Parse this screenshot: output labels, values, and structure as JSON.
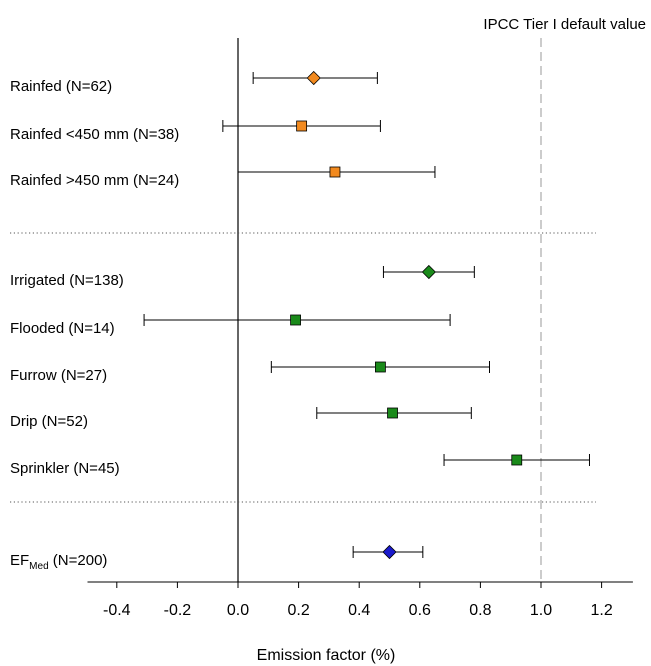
{
  "chart_data": {
    "type": "forest",
    "xlabel": "Emission factor (%)",
    "xlim": [
      -0.5,
      1.3
    ],
    "xticks": [
      "-0.4",
      "-0.2",
      "0.0",
      "0.2",
      "0.4",
      "0.6",
      "0.8",
      "1.0",
      "1.2"
    ],
    "reference_line": {
      "value": 1.0,
      "label": "IPCC Tier I default value",
      "style": "dashed",
      "color": "#b0b0b0"
    },
    "zero_line": {
      "value": 0.0,
      "style": "solid"
    },
    "section_separators": "dotted",
    "rows": [
      {
        "label": "Rainfed (N=62)",
        "estimate": 0.25,
        "lower": 0.05,
        "upper": 0.46,
        "marker": "diamond",
        "color": "#f28a1f",
        "group": "rainfed"
      },
      {
        "label": "Rainfed <450 mm (N=38)",
        "estimate": 0.21,
        "lower": -0.05,
        "upper": 0.47,
        "marker": "square",
        "color": "#f28a1f",
        "group": "rainfed"
      },
      {
        "label": "Rainfed >450 mm (N=24)",
        "estimate": 0.32,
        "lower": 0.0,
        "upper": 0.65,
        "marker": "square",
        "color": "#f28a1f",
        "group": "rainfed"
      },
      {
        "label": "Irrigated (N=138)",
        "estimate": 0.63,
        "lower": 0.48,
        "upper": 0.78,
        "marker": "diamond",
        "color": "#1a8a1a",
        "group": "irrigated"
      },
      {
        "label": "Flooded (N=14)",
        "estimate": 0.19,
        "lower": -0.31,
        "upper": 0.7,
        "marker": "square",
        "color": "#1a8a1a",
        "group": "irrigated"
      },
      {
        "label": "Furrow (N=27)",
        "estimate": 0.47,
        "lower": 0.11,
        "upper": 0.83,
        "marker": "square",
        "color": "#1a8a1a",
        "group": "irrigated"
      },
      {
        "label": "Drip (N=52)",
        "estimate": 0.51,
        "lower": 0.26,
        "upper": 0.77,
        "marker": "square",
        "color": "#1a8a1a",
        "group": "irrigated"
      },
      {
        "label": "Sprinkler (N=45)",
        "estimate": 0.92,
        "lower": 0.68,
        "upper": 1.16,
        "marker": "square",
        "color": "#1a8a1a",
        "group": "irrigated"
      },
      {
        "label_main": "EF",
        "label_sub": "Med",
        "label_rest": " (N=200)",
        "estimate": 0.5,
        "lower": 0.38,
        "upper": 0.61,
        "marker": "diamond",
        "color": "#1a1acc",
        "group": "overall"
      }
    ]
  }
}
